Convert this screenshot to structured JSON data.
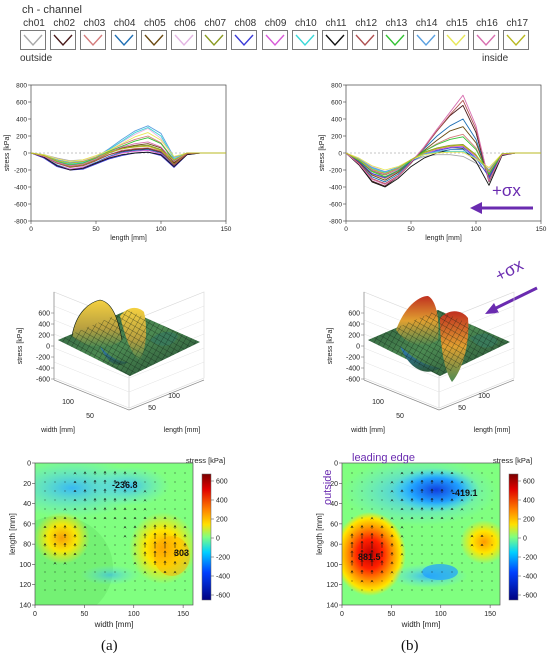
{
  "legend": {
    "title": "ch - channel",
    "outside_label": "outside",
    "inside_label": "inside",
    "channels": [
      {
        "label": "ch01",
        "color": "#a8a8a8"
      },
      {
        "label": "ch02",
        "color": "#4a1a1a"
      },
      {
        "label": "ch03",
        "color": "#d47c7c"
      },
      {
        "label": "ch04",
        "color": "#1f6fb4"
      },
      {
        "label": "ch05",
        "color": "#6b4a12"
      },
      {
        "label": "ch06",
        "color": "#e3b5e3"
      },
      {
        "label": "ch07",
        "color": "#8a9a22"
      },
      {
        "label": "ch08",
        "color": "#3a3ad8"
      },
      {
        "label": "ch09",
        "color": "#d85ad8"
      },
      {
        "label": "ch10",
        "color": "#3ad8d8"
      },
      {
        "label": "ch11",
        "color": "#111111"
      },
      {
        "label": "ch12",
        "color": "#b05050"
      },
      {
        "label": "ch13",
        "color": "#34c234"
      },
      {
        "label": "ch14",
        "color": "#5aa0e0"
      },
      {
        "label": "ch15",
        "color": "#e8e858"
      },
      {
        "label": "ch16",
        "color": "#d870b0"
      },
      {
        "label": "ch17",
        "color": "#b8b820"
      }
    ]
  },
  "captions": {
    "a": "(a)",
    "b": "(b)"
  },
  "annotations": {
    "sigma": "+σx",
    "leading_edge": "leading edge",
    "outside": "outside",
    "a_min": "-236.8",
    "a_max": "303",
    "b_min": "-419.1",
    "b_max": "881.5"
  },
  "chart_data": [
    {
      "type": "line",
      "panel": "a-top",
      "xlabel": "length [mm]",
      "ylabel": "stress [kPa]",
      "xlim": [
        0,
        150
      ],
      "ylim": [
        -800,
        800
      ],
      "xticks": [
        0,
        50,
        100,
        150
      ],
      "yticks": [
        -800,
        -600,
        -400,
        -200,
        0,
        200,
        400,
        600,
        800
      ],
      "x": [
        0,
        10,
        20,
        30,
        40,
        50,
        60,
        70,
        80,
        90,
        100,
        110,
        120,
        130,
        140,
        150
      ],
      "series": [
        {
          "channel": "ch01",
          "values": [
            0,
            -20,
            -60,
            -90,
            -80,
            -40,
            10,
            50,
            80,
            90,
            40,
            -60,
            0,
            0,
            0,
            0
          ]
        },
        {
          "channel": "ch02",
          "values": [
            0,
            -40,
            -120,
            -160,
            -150,
            -90,
            -20,
            20,
            40,
            50,
            10,
            -120,
            -10,
            0,
            0,
            0
          ]
        },
        {
          "channel": "ch03",
          "values": [
            0,
            -30,
            -90,
            -130,
            -110,
            -50,
            30,
            100,
            160,
            200,
            120,
            -80,
            0,
            0,
            0,
            0
          ]
        },
        {
          "channel": "ch04",
          "values": [
            0,
            -50,
            -140,
            -190,
            -170,
            -110,
            -40,
            10,
            30,
            40,
            0,
            -150,
            -10,
            0,
            0,
            0
          ]
        },
        {
          "channel": "ch05",
          "values": [
            0,
            -40,
            -110,
            -150,
            -130,
            -70,
            10,
            60,
            90,
            110,
            60,
            -110,
            0,
            0,
            0,
            0
          ]
        },
        {
          "channel": "ch06",
          "values": [
            0,
            -20,
            -70,
            -100,
            -90,
            -40,
            40,
            130,
            220,
            290,
            170,
            -60,
            0,
            0,
            0,
            0
          ]
        },
        {
          "channel": "ch07",
          "values": [
            0,
            -40,
            -120,
            -160,
            -140,
            -80,
            0,
            50,
            80,
            90,
            40,
            -130,
            0,
            0,
            0,
            0
          ]
        },
        {
          "channel": "ch08",
          "values": [
            0,
            -60,
            -160,
            -200,
            -190,
            -130,
            -70,
            -30,
            0,
            10,
            -30,
            -170,
            -20,
            0,
            0,
            0
          ]
        },
        {
          "channel": "ch09",
          "values": [
            0,
            -50,
            -150,
            -190,
            -170,
            -120,
            -50,
            0,
            20,
            30,
            -10,
            -160,
            -10,
            0,
            0,
            0
          ]
        },
        {
          "channel": "ch10",
          "values": [
            0,
            -30,
            -90,
            -130,
            -110,
            -60,
            40,
            140,
            240,
            300,
            200,
            -70,
            0,
            0,
            0,
            0
          ]
        },
        {
          "channel": "ch11",
          "values": [
            0,
            -50,
            -150,
            -200,
            -180,
            -120,
            -60,
            -20,
            0,
            10,
            -20,
            -160,
            -20,
            0,
            0,
            0
          ]
        },
        {
          "channel": "ch12",
          "values": [
            0,
            -40,
            -120,
            -170,
            -150,
            -90,
            -20,
            30,
            50,
            60,
            20,
            -140,
            -10,
            0,
            0,
            0
          ]
        },
        {
          "channel": "ch13",
          "values": [
            0,
            -30,
            -100,
            -140,
            -120,
            -60,
            20,
            80,
            140,
            180,
            110,
            -90,
            0,
            0,
            0,
            0
          ]
        },
        {
          "channel": "ch14",
          "values": [
            0,
            -20,
            -80,
            -110,
            -100,
            -50,
            50,
            160,
            260,
            320,
            230,
            -50,
            0,
            0,
            0,
            0
          ]
        },
        {
          "channel": "ch15",
          "values": [
            0,
            -20,
            -70,
            -100,
            -80,
            -30,
            30,
            110,
            190,
            240,
            150,
            -40,
            0,
            0,
            0,
            0
          ]
        },
        {
          "channel": "ch16",
          "values": [
            0,
            -40,
            -110,
            -150,
            -130,
            -70,
            10,
            70,
            110,
            130,
            70,
            -100,
            0,
            0,
            0,
            0
          ]
        },
        {
          "channel": "ch17",
          "values": [
            0,
            -30,
            -90,
            -120,
            -100,
            -50,
            10,
            50,
            70,
            80,
            30,
            -80,
            0,
            0,
            0,
            0
          ]
        }
      ]
    },
    {
      "type": "line",
      "panel": "b-top",
      "xlabel": "length [mm]",
      "ylabel": "stress [kPa]",
      "xlim": [
        0,
        150
      ],
      "ylim": [
        -800,
        800
      ],
      "xticks": [
        0,
        50,
        100,
        150
      ],
      "yticks": [
        -800,
        -600,
        -400,
        -200,
        0,
        200,
        400,
        600,
        800
      ],
      "x": [
        0,
        10,
        20,
        30,
        40,
        50,
        60,
        70,
        80,
        90,
        100,
        110,
        120,
        130,
        140,
        150
      ],
      "series": [
        {
          "channel": "ch01",
          "values": [
            0,
            -80,
            -200,
            -280,
            -200,
            -100,
            -40,
            -20,
            -20,
            -40,
            -120,
            -220,
            -10,
            0,
            0,
            0
          ]
        },
        {
          "channel": "ch02",
          "values": [
            0,
            -140,
            -330,
            -390,
            -280,
            -120,
            60,
            260,
            440,
            560,
            240,
            -340,
            -20,
            0,
            0,
            0
          ]
        },
        {
          "channel": "ch03",
          "values": [
            0,
            -100,
            -250,
            -300,
            -220,
            -90,
            20,
            110,
            180,
            220,
            60,
            -260,
            -10,
            0,
            0,
            0
          ]
        },
        {
          "channel": "ch04",
          "values": [
            0,
            -120,
            -280,
            -340,
            -250,
            -100,
            50,
            200,
            320,
            400,
            160,
            -300,
            -20,
            0,
            0,
            0
          ]
        },
        {
          "channel": "ch05",
          "values": [
            0,
            -110,
            -260,
            -320,
            -230,
            -90,
            30,
            150,
            260,
            310,
            120,
            -280,
            -10,
            0,
            0,
            0
          ]
        },
        {
          "channel": "ch06",
          "values": [
            0,
            -60,
            -160,
            -220,
            -170,
            -80,
            -20,
            10,
            20,
            10,
            -80,
            -180,
            -10,
            0,
            0,
            0
          ]
        },
        {
          "channel": "ch07",
          "values": [
            0,
            -90,
            -210,
            -260,
            -190,
            -80,
            10,
            60,
            90,
            100,
            -20,
            -240,
            -10,
            0,
            0,
            0
          ]
        },
        {
          "channel": "ch08",
          "values": [
            0,
            -100,
            -240,
            -290,
            -210,
            -100,
            -20,
            30,
            60,
            70,
            -60,
            -280,
            -10,
            0,
            0,
            0
          ]
        },
        {
          "channel": "ch09",
          "values": [
            0,
            -80,
            -200,
            -250,
            -190,
            -90,
            -10,
            40,
            70,
            80,
            -40,
            -220,
            -10,
            0,
            0,
            0
          ]
        },
        {
          "channel": "ch10",
          "values": [
            0,
            -70,
            -180,
            -230,
            -180,
            -90,
            -20,
            10,
            20,
            20,
            -70,
            -200,
            -10,
            0,
            0,
            0
          ]
        },
        {
          "channel": "ch11",
          "values": [
            0,
            -140,
            -340,
            -400,
            -300,
            -160,
            -60,
            0,
            40,
            50,
            -100,
            -380,
            -30,
            0,
            0,
            0
          ]
        },
        {
          "channel": "ch12",
          "values": [
            0,
            -120,
            -300,
            -360,
            -270,
            -110,
            60,
            260,
            450,
            620,
            280,
            -320,
            -20,
            0,
            0,
            0
          ]
        },
        {
          "channel": "ch13",
          "values": [
            0,
            -90,
            -220,
            -280,
            -210,
            -90,
            20,
            100,
            160,
            190,
            40,
            -250,
            -10,
            0,
            0,
            0
          ]
        },
        {
          "channel": "ch14",
          "values": [
            0,
            -70,
            -170,
            -220,
            -170,
            -80,
            -10,
            20,
            40,
            40,
            -60,
            -200,
            -10,
            0,
            0,
            0
          ]
        },
        {
          "channel": "ch15",
          "values": [
            0,
            -60,
            -150,
            -200,
            -160,
            -80,
            -20,
            0,
            10,
            10,
            -70,
            -170,
            -10,
            0,
            0,
            0
          ]
        },
        {
          "channel": "ch16",
          "values": [
            0,
            -130,
            -310,
            -370,
            -280,
            -110,
            70,
            280,
            480,
            680,
            320,
            -330,
            -20,
            0,
            0,
            0
          ]
        },
        {
          "channel": "ch17",
          "values": [
            0,
            -80,
            -190,
            -240,
            -180,
            -80,
            0,
            50,
            80,
            90,
            -30,
            -210,
            -10,
            0,
            0,
            0
          ]
        }
      ]
    },
    {
      "type": "surface",
      "panel": "a-mid",
      "zlabel": "stress [kPa]",
      "xlabel": "length [mm]",
      "ylabel": "width [mm]",
      "zticks": [
        600,
        400,
        200,
        0,
        -200,
        -400,
        -600
      ],
      "xticks": [
        100,
        50
      ],
      "yticks": [
        100,
        50
      ]
    },
    {
      "type": "surface",
      "panel": "b-mid",
      "zlabel": "stress [kPa]",
      "xlabel": "length [mm]",
      "ylabel": "width [mm]",
      "zticks": [
        600,
        400,
        200,
        0,
        -200,
        -400,
        -600
      ],
      "xticks": [
        100,
        50
      ],
      "yticks": [
        100,
        50
      ]
    },
    {
      "type": "heatmap",
      "panel": "a-bottom",
      "xlabel": "width [mm]",
      "ylabel": "length [mm]",
      "colorbar_label": "stress [kPa]",
      "xlim": [
        0,
        160
      ],
      "ylim": [
        0,
        140
      ],
      "xticks": [
        0,
        50,
        100,
        150
      ],
      "yticks": [
        0,
        20,
        40,
        60,
        80,
        100,
        120,
        140
      ],
      "cticks": [
        600,
        400,
        200,
        0,
        -200,
        -400,
        -600
      ],
      "min_value": -236.8,
      "max_value": 303
    },
    {
      "type": "heatmap",
      "panel": "b-bottom",
      "xlabel": "width [mm]",
      "ylabel": "length [mm]",
      "colorbar_label": "stress [kPa]",
      "xlim": [
        0,
        160
      ],
      "ylim": [
        0,
        140
      ],
      "xticks": [
        0,
        50,
        100,
        150
      ],
      "yticks": [
        0,
        20,
        40,
        60,
        80,
        100,
        120,
        140
      ],
      "cticks": [
        600,
        400,
        200,
        0,
        -200,
        -400,
        -600
      ],
      "min_value": -419.1,
      "max_value": 881.5
    }
  ]
}
